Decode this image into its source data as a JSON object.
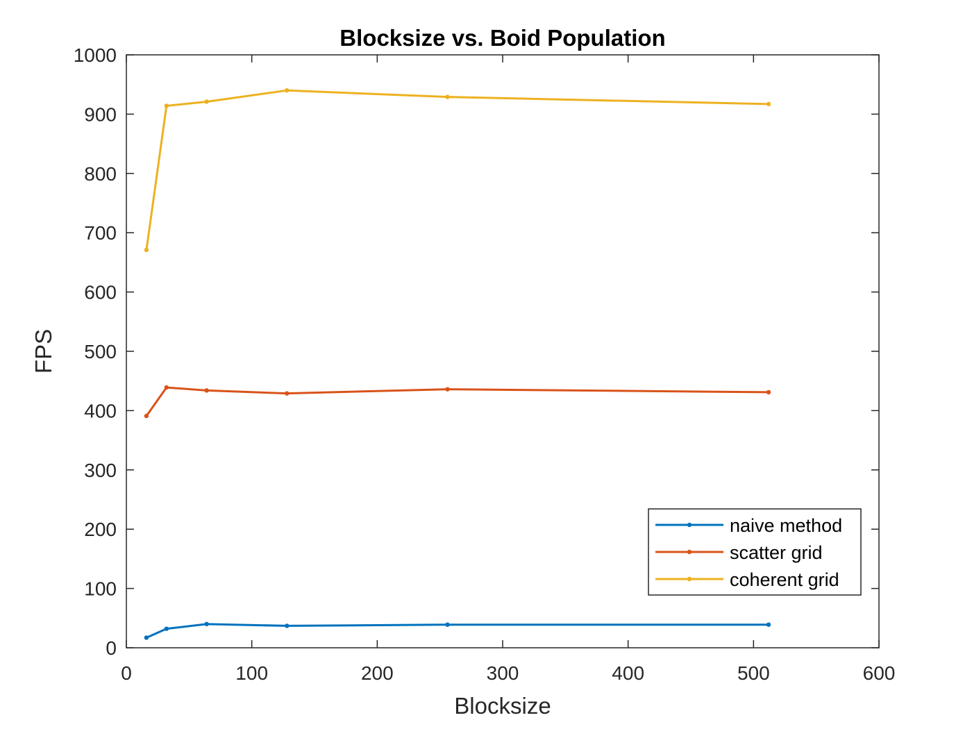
{
  "chart_data": {
    "type": "line",
    "title": "Blocksize vs. Boid Population",
    "xlabel": "Blocksize",
    "ylabel": "FPS",
    "xlim": [
      0,
      600
    ],
    "ylim": [
      0,
      1000
    ],
    "xticks": [
      0,
      100,
      200,
      300,
      400,
      500,
      600
    ],
    "yticks": [
      0,
      100,
      200,
      300,
      400,
      500,
      600,
      700,
      800,
      900,
      1000
    ],
    "grid": false,
    "legend_position": "bottom-right",
    "x": [
      16,
      32,
      64,
      128,
      256,
      512
    ],
    "series": [
      {
        "name": "naive method",
        "color": "#0072BD",
        "values": [
          17,
          32,
          40,
          37,
          39,
          39
        ]
      },
      {
        "name": "scatter grid",
        "color": "#D95319",
        "values": [
          391,
          439,
          434,
          429,
          436,
          431
        ]
      },
      {
        "name": "coherent grid",
        "color": "#EDB120",
        "values": [
          671,
          914,
          921,
          940,
          929,
          917
        ]
      }
    ]
  }
}
